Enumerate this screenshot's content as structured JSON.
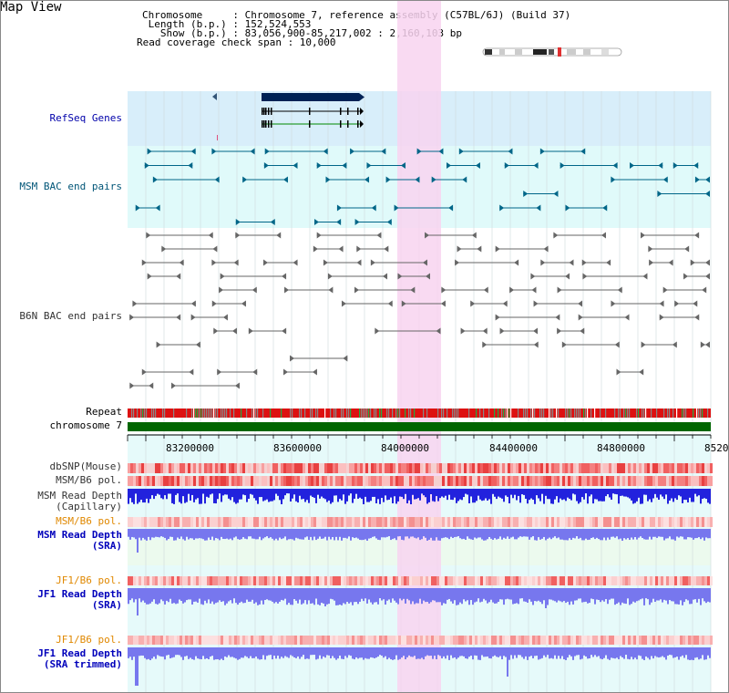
{
  "page_title": "Map View",
  "info": {
    "chromosome": "Chromosome     : Chromosome 7, reference assembly (C57BL/6J) (Build 37)",
    "length": " Length (b.p.) : 152,524,553",
    "show": "   Show (b.p.) : 83,056,900-85,217,002 : 2,160,103 bp",
    "coverage": "Read coverage check span : 10,000"
  },
  "tracks": {
    "refseq": "RefSeq Genes",
    "msm_bac": "MSM BAC end pairs",
    "b6n_bac": "B6N BAC end pairs",
    "repeat": "Repeat",
    "chromosome": "chromosome 7",
    "dbsnp": "dbSNP(Mouse)",
    "msm_b6_pol_1": "MSM/B6 pol.",
    "msm_depth_cap_1": "MSM Read Depth",
    "msm_depth_cap_2": "(Capillary)",
    "msm_b6_pol_2": "MSM/B6 pol.",
    "msm_depth_sra_1": "MSM Read Depth",
    "msm_depth_sra_2": "(SRA)",
    "jf1_b6_pol_1": "JF1/B6 pol.",
    "jf1_depth_sra_1": "JF1 Read Depth",
    "jf1_depth_sra_2": "(SRA)",
    "jf1_b6_pol_2": "JF1/B6 pol.",
    "jf1_depth_trim_1": "JF1 Read Depth",
    "jf1_depth_trim_2": "(SRA trimmed)"
  },
  "axis_ticks": [
    "83200000",
    "83600000",
    "84000000",
    "84400000",
    "84800000",
    "8520"
  ],
  "colors": {
    "refseq_bg": "#d8eefa",
    "msm_bg": "#e0fafa",
    "highlight": "#f8d4f0",
    "gene_dark": "#002255",
    "msm_feature": "#006688",
    "b6n_feature": "#666666",
    "chromosome_bar": "#006600",
    "repeat_red": "#dd1111",
    "depth_blue": "#2222dd",
    "depth_violet": "#7777ee"
  }
}
